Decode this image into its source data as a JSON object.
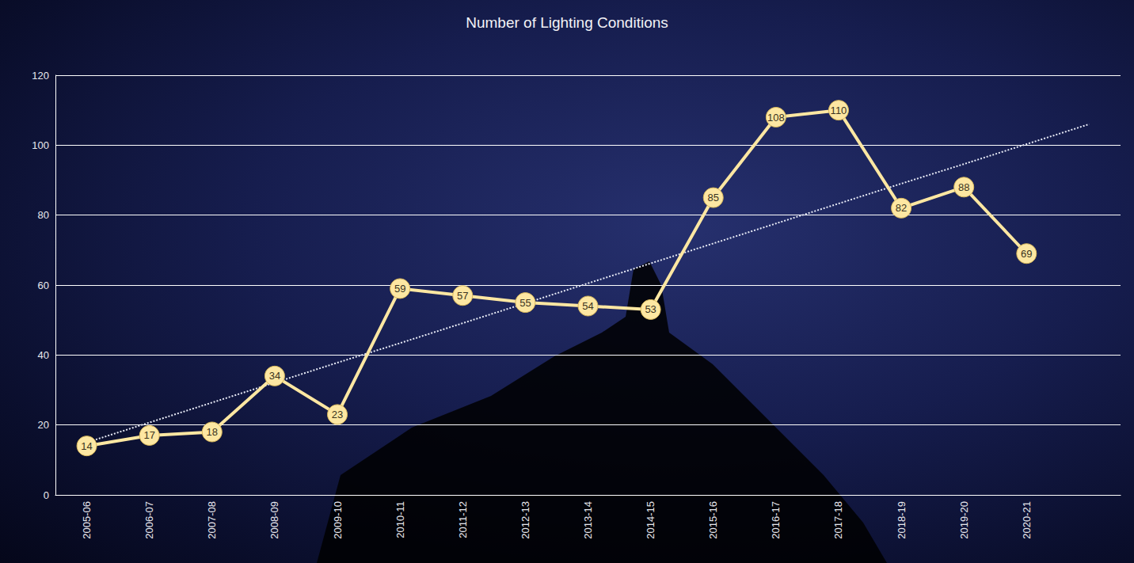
{
  "chart_data": {
    "type": "line",
    "title": "Number of Lighting Conditions",
    "categories": [
      "2005-06",
      "2006-07",
      "2007-08",
      "2008-09",
      "2009-10",
      "2010-11",
      "2011-12",
      "2012-13",
      "2013-14",
      "2014-15",
      "2015-16",
      "2016-17",
      "2017-18",
      "2018-19",
      "2019-20",
      "2020-21",
      null
    ],
    "series": [
      {
        "type": "line",
        "color": "#fde7a2",
        "marker": "circle",
        "line_style": "solid",
        "data_labels": true,
        "values": [
          14,
          17,
          18,
          34,
          23,
          59,
          57,
          55,
          54,
          53,
          85,
          108,
          110,
          82,
          88,
          69,
          null
        ]
      },
      {
        "type": "line",
        "color": "#e6e9f5",
        "marker": "none",
        "line_style": "dotted",
        "values": [
          15.0,
          20.7,
          26.4,
          32.1,
          37.8,
          43.4,
          49.1,
          54.8,
          60.5,
          66.2,
          71.9,
          77.6,
          83.3,
          89.0,
          94.6,
          100.3,
          106.0
        ]
      }
    ],
    "ylim": [
      0,
      120
    ],
    "yticks": [
      0,
      20,
      40,
      60,
      80,
      100,
      120
    ],
    "grid": true
  }
}
